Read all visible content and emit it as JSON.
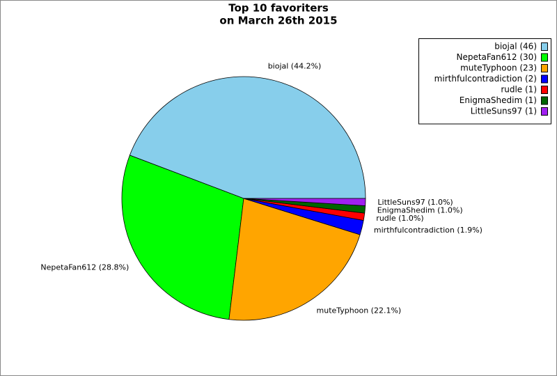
{
  "chart_data": {
    "type": "pie",
    "title": [
      "Top 10 favoriters",
      "on March 26th 2015"
    ],
    "categories": [
      "biojal (44.2%)",
      "NepetaFan612 (28.8%)",
      "muteTyphoon (22.1%)",
      "mirthfulcontradiction (1.9%)",
      "rudle (1.0%)",
      "EnigmaShedim (1.0%)",
      "LittleSuns97 (1.0%)"
    ],
    "values": [
      46,
      30,
      23,
      2,
      1,
      1,
      1
    ],
    "value_labels": [
      "biojal (46)",
      "NepetaFan612 (30)",
      "muteTyphoon (23)",
      "mirthfulcontradiction (2)",
      "rudle (1)",
      "EnigmaShedim (1)",
      "LittleSuns97 (1)"
    ],
    "colors": [
      "#87ceeb",
      "#00ff00",
      "#ffa500",
      "#0000ff",
      "#ff0000",
      "#006400",
      "#a020f0"
    ],
    "legend": "upper right"
  }
}
